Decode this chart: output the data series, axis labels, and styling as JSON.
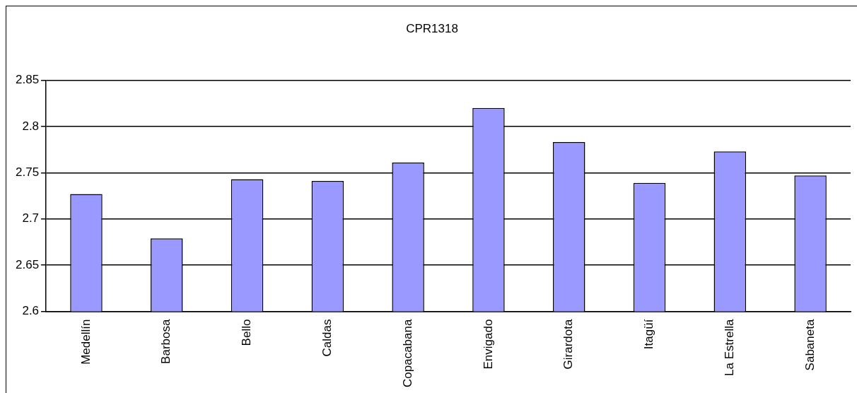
{
  "chart_data": {
    "type": "bar",
    "title": "CPR1318",
    "categories": [
      "Medellín",
      "Barbosa",
      "Bello",
      "Caldas",
      "Copacabana",
      "Envigado",
      "Girardota",
      "Itagüí",
      "La Estrella",
      "Sabaneta"
    ],
    "values": [
      2.727,
      2.679,
      2.743,
      2.741,
      2.761,
      2.82,
      2.783,
      2.739,
      2.773,
      2.747
    ],
    "color": "#9999ff",
    "ylim": [
      2.6,
      2.85
    ],
    "yticks": [
      2.6,
      2.65,
      2.7,
      2.75,
      2.8,
      2.85
    ],
    "grid": "y",
    "legend": false
  }
}
